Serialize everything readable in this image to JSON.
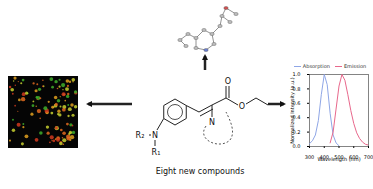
{
  "structure": {
    "caption": "Eight new compounds",
    "labels": {
      "amine_nitrogen": "N",
      "substituent_1": "R₁",
      "substituent_2": "R₂",
      "ring_nitrogen": "N",
      "carbonyl_oxygen": "O",
      "ester_oxygen": "O"
    }
  },
  "chart_data": {
    "type": "line",
    "x": [
      300,
      320,
      340,
      360,
      380,
      400,
      420,
      440,
      460,
      480,
      500,
      520,
      540,
      560,
      580,
      600,
      620,
      640,
      660,
      680,
      700
    ],
    "series": [
      {
        "name": "Absorption",
        "color": "#8fa6e6",
        "values": [
          0.04,
          0.08,
          0.16,
          0.36,
          0.72,
          1.0,
          0.86,
          0.46,
          0.16,
          0.05,
          0.01,
          null,
          null,
          null,
          null,
          null,
          null,
          null,
          null,
          null,
          null
        ]
      },
      {
        "name": "Emission",
        "color": "#e8688c",
        "values": [
          null,
          null,
          null,
          null,
          null,
          null,
          null,
          0.05,
          0.2,
          0.52,
          0.84,
          1.0,
          0.92,
          0.72,
          0.5,
          0.32,
          0.19,
          0.11,
          0.06,
          0.03,
          0.02
        ]
      }
    ],
    "x_label": "Wavelength (nm)",
    "y_label": "Normalized Intensity (a.u.)",
    "xlim": [
      300,
      700
    ],
    "ylim": [
      0,
      1
    ],
    "xticks": [
      300,
      400,
      500,
      600,
      700
    ],
    "yticks": [
      {
        "value": 0,
        "label": "0.0"
      },
      {
        "value": 0.2,
        "label": "0.2"
      },
      {
        "value": 0.4,
        "label": "0.4"
      },
      {
        "value": 0.6,
        "label": "0.6"
      },
      {
        "value": 0.8,
        "label": "0.8"
      },
      {
        "value": 1,
        "label": "1.0"
      }
    ],
    "legend": "top"
  }
}
